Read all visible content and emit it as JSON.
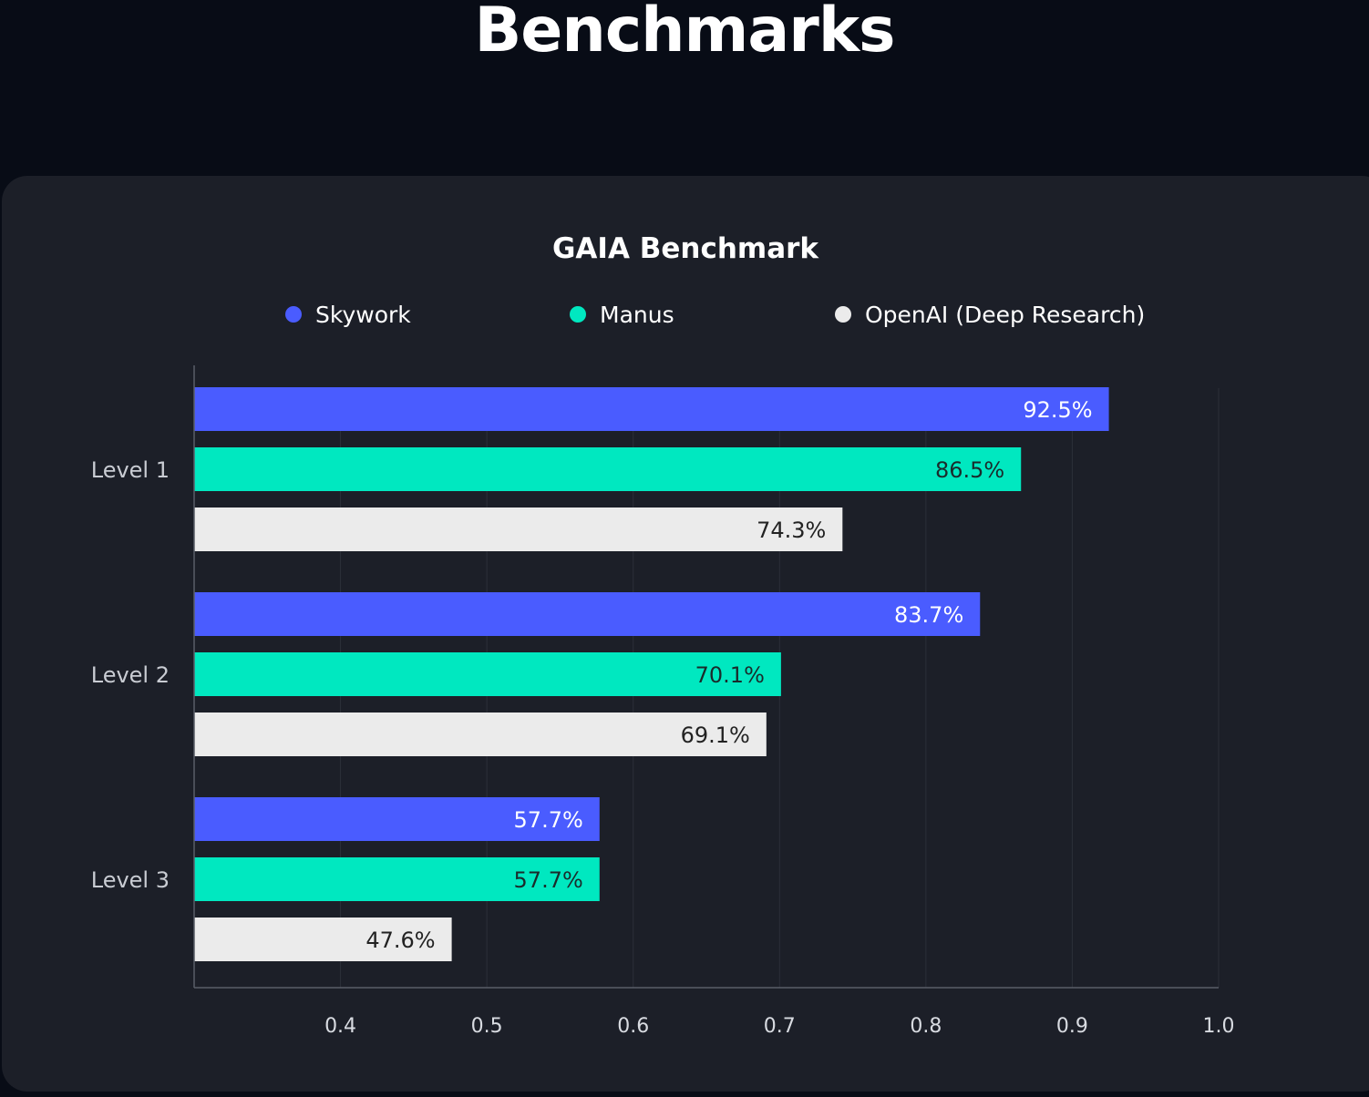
{
  "page": {
    "title": "Benchmarks"
  },
  "colors": {
    "background": "#080c16",
    "card": "#1c1f28",
    "grid": "#2b2f39",
    "axis": "#5a5e68"
  },
  "chart_data": {
    "type": "bar",
    "orientation": "horizontal",
    "title": "GAIA Benchmark",
    "categories": [
      "Level 1",
      "Level 2",
      "Level 3"
    ],
    "series": [
      {
        "name": "Skywork",
        "color": "#4a5cff",
        "label_color": "#ffffff",
        "values": [
          0.925,
          0.837,
          0.577
        ],
        "labels": [
          "92.5%",
          "83.7%",
          "57.7%"
        ]
      },
      {
        "name": "Manus",
        "color": "#00e8c0",
        "label_color": "#1a2b2b",
        "values": [
          0.865,
          0.701,
          0.577
        ],
        "labels": [
          "86.5%",
          "70.1%",
          "57.7%"
        ]
      },
      {
        "name": "OpenAI (Deep Research)",
        "color": "#ebebeb",
        "label_color": "#222222",
        "values": [
          0.743,
          0.691,
          0.476
        ],
        "labels": [
          "74.3%",
          "69.1%",
          "47.6%"
        ]
      }
    ],
    "xlim": [
      0.3,
      1.0
    ],
    "xticks": [
      0.4,
      0.5,
      0.6,
      0.7,
      0.8,
      0.9,
      1.0
    ],
    "xtick_labels": [
      "0.4",
      "0.5",
      "0.6",
      "0.7",
      "0.8",
      "0.9",
      "1.0"
    ],
    "grid": "vertical",
    "legend": "top"
  }
}
